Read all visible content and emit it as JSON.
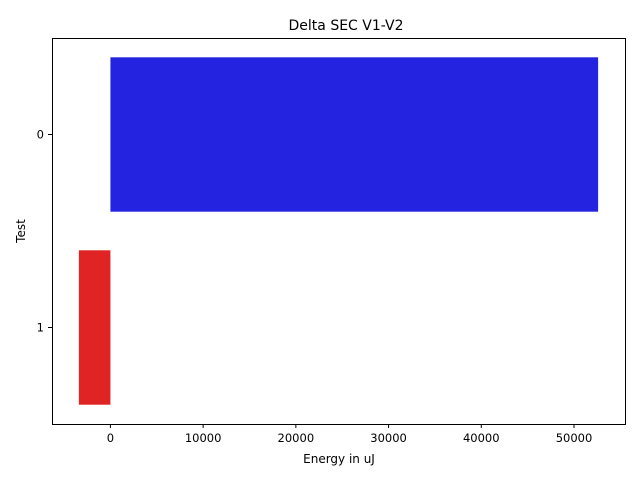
{
  "chart_data": {
    "type": "bar",
    "orientation": "horizontal",
    "title": "Delta SEC V1-V2",
    "xlabel": "Energy in uJ",
    "ylabel": "Test",
    "categories": [
      "0",
      "1"
    ],
    "values": [
      52600,
      -3400
    ],
    "bar_colors": [
      "#2323e0",
      "#e02323"
    ],
    "xlim": [
      -6300,
      55500
    ],
    "xticks": [
      0,
      10000,
      20000,
      30000,
      40000,
      50000
    ],
    "xtick_labels": [
      "0",
      "10000",
      "20000",
      "30000",
      "40000",
      "50000"
    ],
    "grid": false,
    "legend": "none"
  }
}
